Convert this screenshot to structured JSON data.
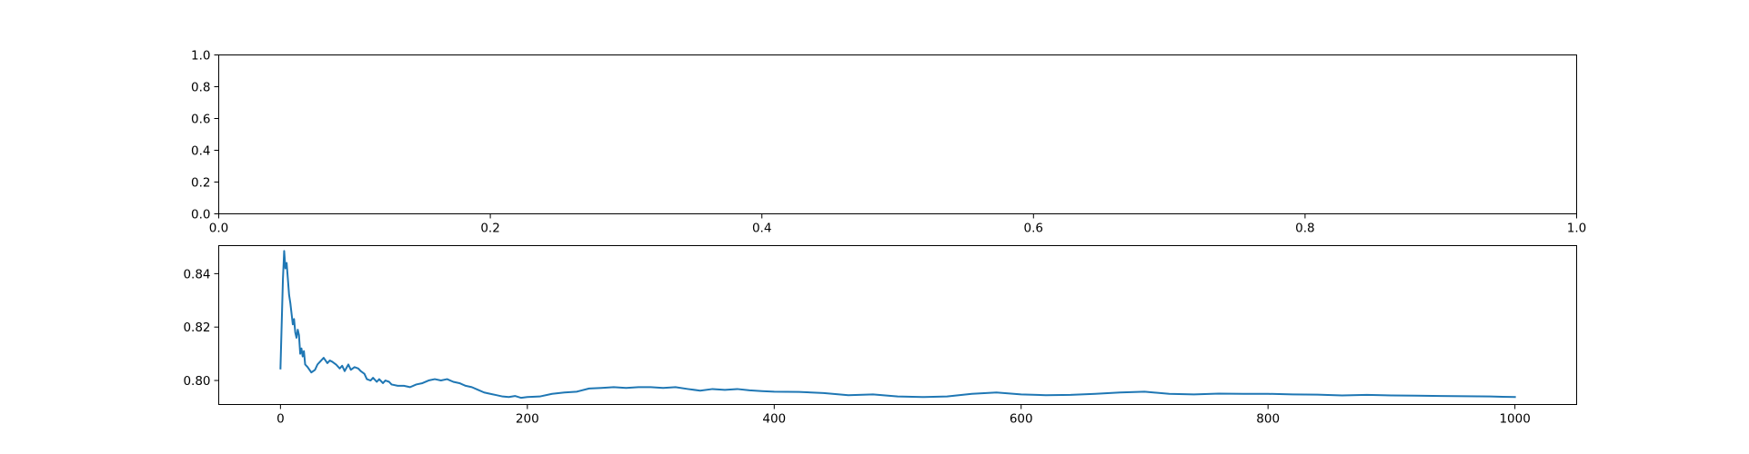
{
  "chart_data": [
    {
      "type": "line",
      "title": "",
      "xlabel": "",
      "ylabel": "",
      "xlim": [
        0.0,
        1.0
      ],
      "ylim": [
        0.0,
        1.0
      ],
      "x_ticks": [
        "0.0",
        "0.2",
        "0.4",
        "0.6",
        "0.8",
        "1.0"
      ],
      "y_ticks": [
        "0.0",
        "0.2",
        "0.4",
        "0.6",
        "0.8",
        "1.0"
      ],
      "x_tick_values": [
        0.0,
        0.2,
        0.4,
        0.6,
        0.8,
        1.0
      ],
      "y_tick_values": [
        0.0,
        0.2,
        0.4,
        0.6,
        0.8,
        1.0
      ],
      "grid": false,
      "series": []
    },
    {
      "type": "line",
      "title": "",
      "xlabel": "",
      "ylabel": "",
      "xlim": [
        -50,
        1050
      ],
      "ylim": [
        0.791,
        0.8505
      ],
      "x_ticks": [
        "0",
        "200",
        "400",
        "600",
        "800",
        "1000"
      ],
      "y_ticks": [
        "0.80",
        "0.82",
        "0.84"
      ],
      "x_tick_values": [
        0,
        200,
        400,
        600,
        800,
        1000
      ],
      "y_tick_values": [
        0.8,
        0.82,
        0.84
      ],
      "grid": false,
      "line_color": "#1f77b4",
      "series": [
        {
          "x": [
            0,
            2,
            3,
            4,
            5,
            6,
            7,
            8,
            9,
            10,
            11,
            12,
            13,
            14,
            15,
            16,
            17,
            18,
            19,
            20,
            22,
            25,
            28,
            30,
            32,
            35,
            38,
            40,
            42,
            45,
            48,
            50,
            52,
            55,
            57,
            60,
            63,
            65,
            68,
            70,
            73,
            75,
            78,
            80,
            83,
            85,
            88,
            90,
            95,
            100,
            105,
            110,
            115,
            120,
            125,
            130,
            135,
            140,
            145,
            150,
            155,
            160,
            165,
            170,
            175,
            180,
            185,
            190,
            195,
            200,
            210,
            220,
            230,
            240,
            250,
            260,
            270,
            280,
            290,
            300,
            310,
            320,
            330,
            340,
            350,
            360,
            370,
            380,
            390,
            400,
            420,
            440,
            460,
            480,
            500,
            520,
            540,
            560,
            580,
            600,
            620,
            640,
            660,
            680,
            700,
            720,
            740,
            760,
            780,
            800,
            820,
            840,
            860,
            880,
            900,
            920,
            940,
            960,
            980,
            1000
          ],
          "y": [
            0.8045,
            0.838,
            0.8485,
            0.842,
            0.844,
            0.838,
            0.832,
            0.829,
            0.825,
            0.821,
            0.823,
            0.818,
            0.816,
            0.819,
            0.817,
            0.81,
            0.812,
            0.809,
            0.811,
            0.806,
            0.805,
            0.803,
            0.804,
            0.806,
            0.807,
            0.8085,
            0.8065,
            0.8075,
            0.807,
            0.806,
            0.8045,
            0.8055,
            0.8035,
            0.806,
            0.804,
            0.805,
            0.8045,
            0.8035,
            0.8025,
            0.8005,
            0.8,
            0.801,
            0.7995,
            0.8005,
            0.799,
            0.8,
            0.7995,
            0.7985,
            0.798,
            0.798,
            0.7975,
            0.7985,
            0.799,
            0.8,
            0.8005,
            0.8,
            0.8005,
            0.7995,
            0.799,
            0.798,
            0.7975,
            0.7965,
            0.7955,
            0.795,
            0.7945,
            0.794,
            0.7938,
            0.7942,
            0.7935,
            0.7938,
            0.794,
            0.795,
            0.7955,
            0.7958,
            0.797,
            0.7972,
            0.7975,
            0.7972,
            0.7975,
            0.7975,
            0.7972,
            0.7975,
            0.7968,
            0.7962,
            0.7968,
            0.7965,
            0.7968,
            0.7963,
            0.796,
            0.7958,
            0.7957,
            0.7953,
            0.7945,
            0.7948,
            0.794,
            0.7938,
            0.794,
            0.795,
            0.7955,
            0.7948,
            0.7945,
            0.7946,
            0.795,
            0.7955,
            0.7958,
            0.795,
            0.7948,
            0.7951,
            0.795,
            0.795,
            0.7948,
            0.7947,
            0.7944,
            0.7946,
            0.7944,
            0.7943,
            0.7942,
            0.7941,
            0.794,
            0.7938
          ]
        }
      ]
    }
  ]
}
